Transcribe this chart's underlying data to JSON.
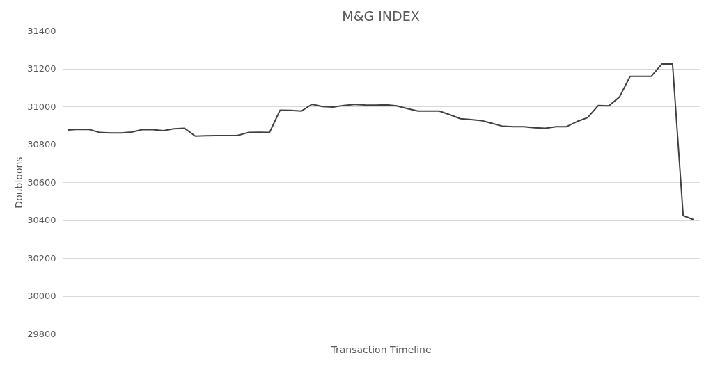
{
  "chart_data": {
    "type": "line",
    "title": "M&G INDEX",
    "xlabel": "Transaction Timeline",
    "ylabel": "Doubloons",
    "categories": [
      null,
      null,
      null,
      null,
      null,
      null,
      null,
      null,
      null,
      null,
      null,
      null,
      null,
      null,
      null,
      null,
      null,
      null,
      null,
      null,
      null,
      null,
      null,
      null,
      null,
      null,
      null,
      null,
      null,
      null,
      null,
      null,
      null,
      null,
      null,
      null,
      null,
      null,
      null,
      null,
      null,
      null,
      null,
      null,
      null,
      null,
      null,
      null,
      null,
      null,
      null,
      null,
      null,
      null,
      null,
      null,
      null,
      null,
      null,
      null
    ],
    "series": [
      {
        "color": "#404040",
        "values": [
          30875,
          30879,
          30878,
          30862,
          30860,
          30860,
          30864,
          30877,
          30877,
          30872,
          30882,
          30884,
          30843,
          30845,
          30846,
          30846,
          30847,
          30862,
          30863,
          30862,
          30980,
          30979,
          30975,
          31011,
          30999,
          30996,
          31005,
          31010,
          31007,
          31006,
          31008,
          31003,
          30988,
          30975,
          30975,
          30975,
          30956,
          30935,
          30930,
          30925,
          30910,
          30895,
          30893,
          30893,
          30887,
          30884,
          30893,
          30893,
          30920,
          30941,
          31005,
          31003,
          31050,
          31159,
          31159,
          31159,
          31224,
          31224,
          30424,
          30402
        ]
      }
    ],
    "ylim": [
      29800,
      31400
    ],
    "yticks": [
      29800,
      30000,
      30200,
      30400,
      30600,
      30800,
      31000,
      31200,
      31400
    ],
    "grid": "y",
    "marker": "none",
    "line_style": "solid"
  }
}
